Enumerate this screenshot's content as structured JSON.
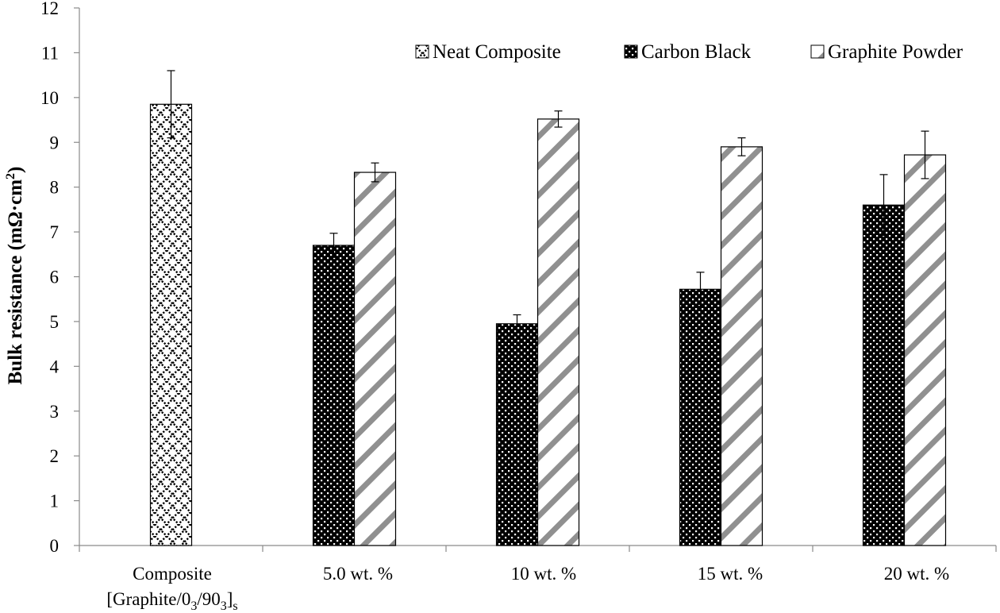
{
  "chart_data": {
    "type": "bar",
    "title": "",
    "xlabel": "",
    "ylabel": "Bulk resistance (mΩ·cm²)",
    "ylabel_parts": {
      "main": "Bulk resistance (mΩ·cm",
      "sup": "2",
      "close": ")"
    },
    "ylim": [
      0,
      12
    ],
    "yticks": [
      0,
      1,
      2,
      3,
      4,
      5,
      6,
      7,
      8,
      9,
      10,
      11,
      12
    ],
    "categories": [
      "Composite [Graphite/0₃/90₃]ₛ",
      "5.0 wt. %",
      "10 wt. %",
      "15 wt. %",
      "20 wt. %"
    ],
    "category_labels": [
      {
        "line1": "Composite",
        "line2": {
          "a": "[Graphite/0",
          "b": "3",
          "c": "/90",
          "d": "3",
          "e": "]",
          "f": "s"
        }
      },
      {
        "line1": "5.0 wt. %"
      },
      {
        "line1": "10 wt. %"
      },
      {
        "line1": "15 wt. %"
      },
      {
        "line1": "20 wt. %"
      }
    ],
    "series": [
      {
        "name": "Neat Composite",
        "values": [
          9.85,
          null,
          null,
          null,
          null
        ],
        "errors": [
          0.75,
          null,
          null,
          null,
          null
        ]
      },
      {
        "name": "Carbon Black",
        "values": [
          null,
          6.7,
          4.95,
          5.72,
          7.6
        ],
        "errors": [
          null,
          0.27,
          0.2,
          0.38,
          0.68
        ]
      },
      {
        "name": "Graphite Powder",
        "values": [
          null,
          8.33,
          9.52,
          8.9,
          8.72
        ],
        "errors": [
          null,
          0.21,
          0.18,
          0.2,
          0.53
        ]
      }
    ],
    "legend_position": "top-right",
    "grid": false
  }
}
